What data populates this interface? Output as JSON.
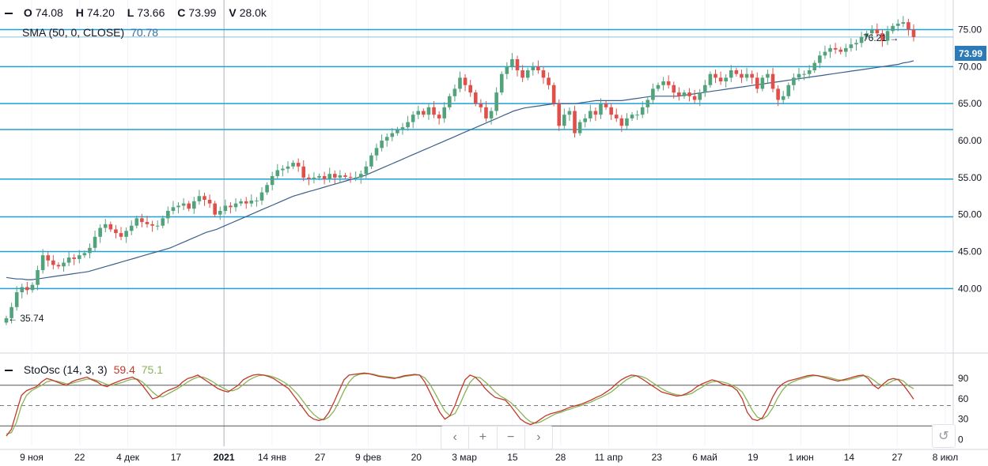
{
  "colors": {
    "up": "#52a37c",
    "down": "#e0504b",
    "sma": "#3a5f8a",
    "hline": "#1ea1d8",
    "stoch_k": "#c0392b",
    "stoch_d": "#8cb356",
    "badge": "#2c7ab8"
  },
  "legend": {
    "o_label": "O",
    "o_value": "74.08",
    "h_label": "H",
    "h_value": "74.20",
    "l_label": "L",
    "l_value": "73.66",
    "c_label": "C",
    "c_value": "73.99",
    "v_label": "V",
    "v_value": "28.0k",
    "sma_label": "SMA (50, 0, CLOSE)",
    "sma_value": "70.78"
  },
  "stoch_legend": {
    "label": "StoOsc (14, 3, 3)",
    "k_value": "59.4",
    "d_value": "75.1"
  },
  "last_price": "73.99",
  "annotations": {
    "high": "76.21",
    "low": "35.74"
  },
  "navigation": {
    "prev": "‹",
    "zoom_in": "+",
    "zoom_out": "−",
    "next": "›",
    "reset": "↺"
  },
  "chart_data": [
    {
      "type": "candlestick",
      "price_axis": {
        "ticks": [
          "40.00",
          "45.00",
          "50.00",
          "55.00",
          "60.00",
          "65.00",
          "70.00",
          "75.00"
        ],
        "min": 31.5,
        "max": 79.0
      },
      "time_axis": {
        "labels": [
          "9 ноя",
          "22",
          "4 дек",
          "17",
          "2021",
          "14 янв",
          "27",
          "9 фев",
          "20",
          "3 мар",
          "15",
          "28",
          "11 апр",
          "23",
          "6 май",
          "19",
          "1 июн",
          "14",
          "27",
          "8 июл"
        ]
      },
      "horizontal_levels": [
        40.0,
        45.0,
        49.7,
        54.8,
        61.5,
        65.0,
        70.0,
        75.0
      ],
      "series": [
        {
          "name": "price",
          "values": [
            36.0,
            37.5,
            39.5,
            40.2,
            39.8,
            40.5,
            42.5,
            44.5,
            43.8,
            43.2,
            43.0,
            43.5,
            44.2,
            44.0,
            44.5,
            44.8,
            45.5,
            47.0,
            48.2,
            48.7,
            48.0,
            47.5,
            47.0,
            47.8,
            48.5,
            49.5,
            49.0,
            48.7,
            48.5,
            48.5,
            49.5,
            50.5,
            51.0,
            51.2,
            51.5,
            50.8,
            51.8,
            52.5,
            52.0,
            51.5,
            50.0,
            50.5,
            51.2,
            51.0,
            51.5,
            51.8,
            51.5,
            51.9,
            51.9,
            53.0,
            54.0,
            55.2,
            56.0,
            56.2,
            56.5,
            57.0,
            56.5,
            55.0,
            54.8,
            55.0,
            55.2,
            54.8,
            55.5,
            55.0,
            55.3,
            55.1,
            55.0,
            55.0,
            55.5,
            56.5,
            58.0,
            59.0,
            60.0,
            60.5,
            61.0,
            61.5,
            61.8,
            62.5,
            63.5,
            64.0,
            63.5,
            64.5,
            63.5,
            63.0,
            64.5,
            66.0,
            67.0,
            68.5,
            67.5,
            66.5,
            65.0,
            64.5,
            63.0,
            64.0,
            66.5,
            69.0,
            70.0,
            71.0,
            69.5,
            68.5,
            69.5,
            70.0,
            69.5,
            68.5,
            67.5,
            65.0,
            62.0,
            63.5,
            64.0,
            61.0,
            62.5,
            63.0,
            64.0,
            63.5,
            65.0,
            64.5,
            63.5,
            63.0,
            62.0,
            63.0,
            63.5,
            63.5,
            64.5,
            65.5,
            67.0,
            67.5,
            68.0,
            67.5,
            66.5,
            66.0,
            66.5,
            66.0,
            65.5,
            66.5,
            67.5,
            69.0,
            68.5,
            68.0,
            68.5,
            69.5,
            69.0,
            68.5,
            69.0,
            68.5,
            67.0,
            68.5,
            69.0,
            67.0,
            65.5,
            66.0,
            67.5,
            68.5,
            69.0,
            69.0,
            69.5,
            70.5,
            71.5,
            72.0,
            72.5,
            72.3,
            72.0,
            72.5,
            73.0,
            73.2,
            74.0,
            74.5,
            75.0,
            74.5,
            73.5,
            74.8,
            75.5,
            75.8,
            76.0,
            75.0,
            73.99
          ]
        },
        {
          "name": "SMA (50, 0, CLOSE)",
          "values": [
            41.5,
            41.4,
            41.3,
            41.3,
            41.2,
            41.2,
            41.3,
            41.4,
            41.5,
            41.6,
            41.7,
            41.8,
            41.9,
            42.0,
            42.1,
            42.2,
            42.3,
            42.5,
            42.7,
            42.9,
            43.1,
            43.3,
            43.5,
            43.7,
            43.9,
            44.1,
            44.3,
            44.5,
            44.7,
            44.9,
            45.1,
            45.3,
            45.5,
            45.8,
            46.1,
            46.4,
            46.7,
            47.0,
            47.3,
            47.6,
            47.8,
            48.0,
            48.3,
            48.6,
            48.9,
            49.2,
            49.5,
            49.8,
            50.1,
            50.4,
            50.7,
            51.0,
            51.3,
            51.6,
            51.9,
            52.2,
            52.5,
            52.7,
            52.9,
            53.1,
            53.3,
            53.5,
            53.7,
            53.9,
            54.1,
            54.3,
            54.5,
            54.7,
            54.9,
            55.1,
            55.3,
            55.6,
            55.9,
            56.2,
            56.5,
            56.8,
            57.1,
            57.4,
            57.7,
            58.0,
            58.3,
            58.6,
            58.9,
            59.2,
            59.5,
            59.8,
            60.1,
            60.4,
            60.7,
            61.0,
            61.3,
            61.6,
            61.9,
            62.2,
            62.5,
            62.8,
            63.1,
            63.4,
            63.7,
            64.0,
            64.2,
            64.4,
            64.5,
            64.6,
            64.7,
            64.8,
            64.9,
            65.0,
            65.0,
            65.0,
            65.0,
            65.0,
            65.1,
            65.2,
            65.3,
            65.4,
            65.4,
            65.4,
            65.4,
            65.4,
            65.4,
            65.5,
            65.6,
            65.7,
            65.8,
            65.9,
            66.0,
            66.0,
            66.0,
            66.0,
            66.0,
            66.0,
            66.1,
            66.2,
            66.3,
            66.4,
            66.5,
            66.6,
            66.7,
            66.8,
            66.9,
            67.0,
            67.1,
            67.2,
            67.3,
            67.4,
            67.5,
            67.6,
            67.7,
            67.8,
            67.9,
            68.0,
            68.1,
            68.2,
            68.3,
            68.4,
            68.5,
            68.6,
            68.7,
            68.8,
            68.9,
            69.0,
            69.1,
            69.2,
            69.3,
            69.4,
            69.5,
            69.6,
            69.7,
            69.8,
            69.9,
            70.0,
            70.1,
            70.2,
            70.3,
            70.5,
            70.6,
            70.78
          ]
        }
      ]
    },
    {
      "type": "line",
      "title": "StoOsc (14, 3, 3)",
      "y_axis": {
        "ticks": [
          "0",
          "30",
          "60",
          "90"
        ],
        "min": -10,
        "max": 110,
        "levels": [
          20,
          50,
          80
        ]
      },
      "series": [
        {
          "name": "%K",
          "values": [
            5,
            15,
            40,
            65,
            72,
            75,
            78,
            85,
            90,
            88,
            85,
            82,
            80,
            85,
            88,
            90,
            92,
            88,
            85,
            80,
            78,
            82,
            85,
            88,
            90,
            92,
            88,
            80,
            70,
            60,
            62,
            68,
            72,
            75,
            78,
            85,
            90,
            92,
            95,
            90,
            85,
            80,
            75,
            72,
            70,
            75,
            80,
            88,
            92,
            95,
            96,
            95,
            93,
            90,
            85,
            80,
            75,
            65,
            55,
            45,
            35,
            30,
            28,
            30,
            40,
            55,
            72,
            88,
            95,
            96,
            97,
            98,
            97,
            95,
            93,
            92,
            91,
            90,
            92,
            94,
            95,
            96,
            95,
            85,
            70,
            55,
            40,
            30,
            35,
            50,
            70,
            88,
            95,
            92,
            85,
            75,
            68,
            62,
            60,
            58,
            50,
            40,
            30,
            25,
            22,
            25,
            30,
            35,
            38,
            40,
            42,
            45,
            48,
            50,
            52,
            55,
            58,
            62,
            65,
            70,
            75,
            82,
            88,
            92,
            95,
            94,
            90,
            85,
            80,
            75,
            70,
            68,
            66,
            64,
            65,
            68,
            72,
            78,
            82,
            85,
            88,
            86,
            82,
            80,
            78,
            72,
            60,
            40,
            30,
            28,
            32,
            45,
            62,
            75,
            82,
            86,
            88,
            90,
            92,
            94,
            95,
            94,
            92,
            90,
            88,
            86,
            88,
            90,
            92,
            94,
            95,
            90,
            80,
            75,
            82,
            88,
            90,
            88,
            80,
            70,
            59.4
          ]
        },
        {
          "name": "%D",
          "values": [
            8,
            10,
            25,
            50,
            65,
            72,
            76,
            80,
            85,
            87,
            86,
            84,
            82,
            83,
            85,
            87,
            89,
            89,
            87,
            84,
            81,
            80,
            82,
            84,
            87,
            89,
            89,
            85,
            78,
            70,
            64,
            63,
            67,
            71,
            75,
            80,
            85,
            89,
            92,
            92,
            89,
            85,
            80,
            76,
            72,
            72,
            75,
            81,
            87,
            91,
            94,
            95,
            94,
            92,
            89,
            85,
            80,
            73,
            65,
            55,
            45,
            37,
            31,
            29,
            33,
            42,
            56,
            72,
            85,
            93,
            96,
            97,
            97,
            96,
            94,
            93,
            92,
            91,
            91,
            93,
            94,
            95,
            95,
            91,
            82,
            69,
            55,
            42,
            35,
            38,
            52,
            69,
            84,
            92,
            91,
            85,
            78,
            70,
            64,
            60,
            55,
            48,
            40,
            32,
            26,
            24,
            26,
            30,
            34,
            38,
            40,
            43,
            45,
            48,
            50,
            53,
            55,
            59,
            62,
            66,
            70,
            76,
            82,
            88,
            92,
            94,
            93,
            90,
            85,
            80,
            75,
            71,
            68,
            66,
            65,
            66,
            68,
            73,
            77,
            82,
            85,
            86,
            85,
            83,
            80,
            76,
            70,
            57,
            43,
            33,
            30,
            35,
            46,
            61,
            73,
            81,
            85,
            88,
            90,
            92,
            94,
            94,
            93,
            92,
            90,
            88,
            87,
            88,
            90,
            92,
            94,
            93,
            88,
            82,
            79,
            83,
            87,
            89,
            86,
            79,
            75.1
          ]
        }
      ]
    }
  ]
}
